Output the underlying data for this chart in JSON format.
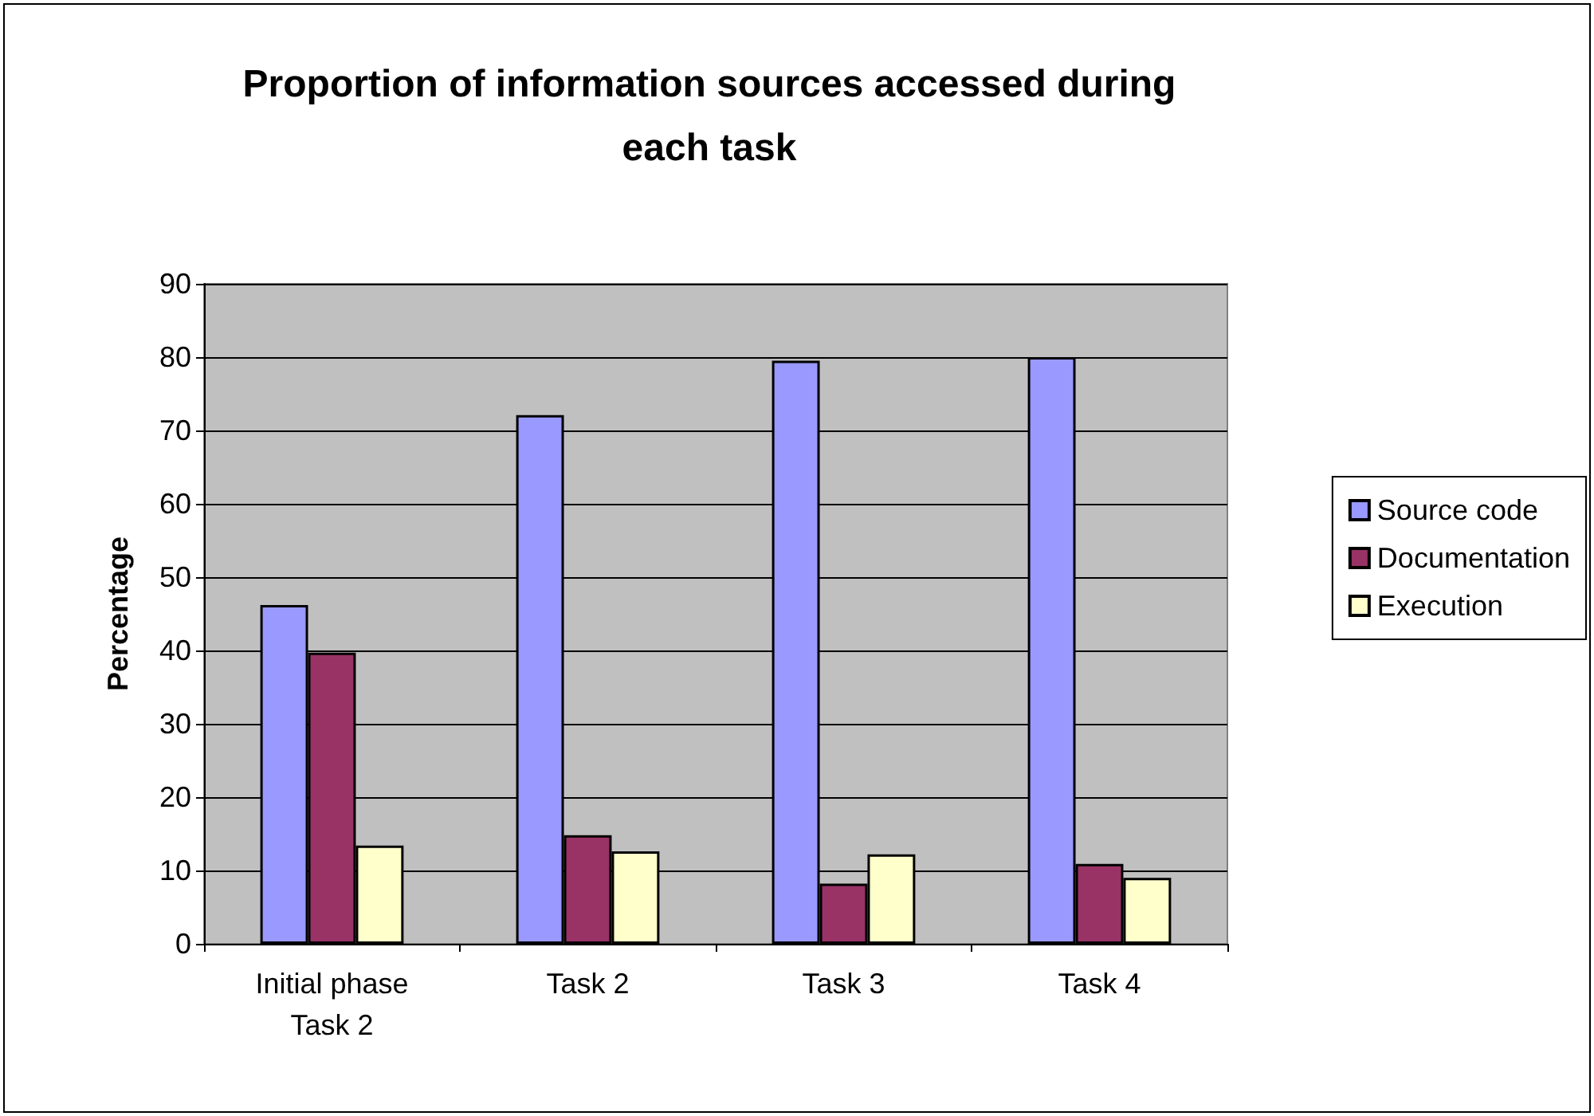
{
  "chart_data": {
    "type": "bar",
    "title": "Proportion of information sources accessed during\neach task",
    "ylabel": "Percentage",
    "categories": [
      "Initial phase\nTask 2",
      "Task 2",
      "Task 3",
      "Task 4"
    ],
    "series": [
      {
        "name": "Source code",
        "color": "#9999ff",
        "values": [
          46.2,
          72.1,
          79.5,
          80.0
        ]
      },
      {
        "name": "Documentation",
        "color": "#993366",
        "values": [
          39.7,
          14.8,
          8.2,
          10.9
        ]
      },
      {
        "name": "Execution",
        "color": "#ffffcc",
        "values": [
          13.4,
          12.6,
          12.2,
          9.0
        ]
      }
    ],
    "ylim": [
      0,
      90
    ],
    "yticks": [
      0,
      10,
      20,
      30,
      40,
      50,
      60,
      70,
      80,
      90
    ],
    "grid": "y",
    "legend": "right"
  }
}
